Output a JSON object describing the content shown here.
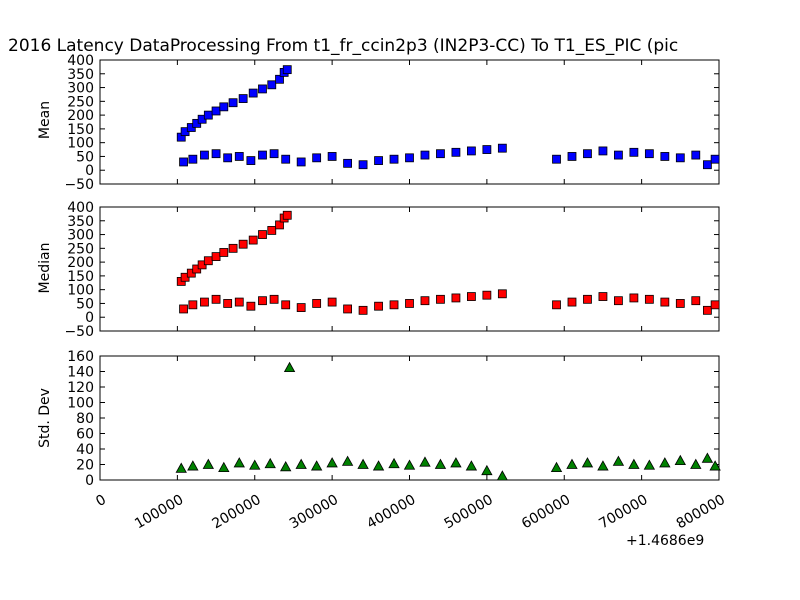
{
  "title": "2016 Latency DataProcessing From t1_fr_ccin2p3 (IN2P3-CC) To T1_ES_PIC (pic",
  "x_offset_label": "+1.4686e9",
  "chart_data": [
    {
      "type": "scatter",
      "ylabel": "Mean",
      "marker": "square",
      "color": "#0000ff",
      "xlim": [
        0,
        800000
      ],
      "ylim": [
        -50,
        400
      ],
      "yticks": [
        "−50",
        "0",
        "50",
        "100",
        "150",
        "200",
        "250",
        "300",
        "350",
        "400"
      ],
      "ytick_values": [
        -50,
        0,
        50,
        100,
        150,
        200,
        250,
        300,
        350,
        400
      ],
      "x": [
        105000,
        110000,
        118000,
        125000,
        132000,
        140000,
        150000,
        160000,
        172000,
        185000,
        198000,
        210000,
        222000,
        232000,
        238000,
        242000,
        108000,
        120000,
        135000,
        150000,
        165000,
        180000,
        195000,
        210000,
        225000,
        240000,
        260000,
        280000,
        300000,
        320000,
        340000,
        360000,
        380000,
        400000,
        420000,
        440000,
        460000,
        480000,
        500000,
        520000,
        590000,
        610000,
        630000,
        650000,
        670000,
        690000,
        710000,
        730000,
        750000,
        770000,
        785000,
        795000
      ],
      "y": [
        120,
        140,
        155,
        170,
        185,
        200,
        215,
        230,
        245,
        260,
        280,
        295,
        310,
        330,
        355,
        365,
        30,
        40,
        55,
        60,
        45,
        50,
        35,
        55,
        60,
        40,
        30,
        45,
        50,
        25,
        20,
        35,
        40,
        45,
        55,
        60,
        65,
        70,
        75,
        80,
        40,
        50,
        60,
        70,
        55,
        65,
        60,
        50,
        45,
        55,
        20,
        40
      ]
    },
    {
      "type": "scatter",
      "ylabel": "Median",
      "marker": "square",
      "color": "#ff0000",
      "xlim": [
        0,
        800000
      ],
      "ylim": [
        -50,
        400
      ],
      "yticks": [
        "−50",
        "0",
        "50",
        "100",
        "150",
        "200",
        "250",
        "300",
        "350",
        "400"
      ],
      "ytick_values": [
        -50,
        0,
        50,
        100,
        150,
        200,
        250,
        300,
        350,
        400
      ],
      "x": [
        105000,
        110000,
        118000,
        125000,
        132000,
        140000,
        150000,
        160000,
        172000,
        185000,
        198000,
        210000,
        222000,
        232000,
        238000,
        242000,
        108000,
        120000,
        135000,
        150000,
        165000,
        180000,
        195000,
        210000,
        225000,
        240000,
        260000,
        280000,
        300000,
        320000,
        340000,
        360000,
        380000,
        400000,
        420000,
        440000,
        460000,
        480000,
        500000,
        520000,
        590000,
        610000,
        630000,
        650000,
        670000,
        690000,
        710000,
        730000,
        750000,
        770000,
        785000,
        795000
      ],
      "y": [
        130,
        145,
        160,
        175,
        190,
        205,
        220,
        235,
        250,
        265,
        280,
        300,
        315,
        335,
        360,
        370,
        30,
        45,
        55,
        65,
        50,
        55,
        40,
        60,
        65,
        45,
        35,
        50,
        55,
        30,
        25,
        40,
        45,
        50,
        60,
        65,
        70,
        75,
        80,
        85,
        45,
        55,
        65,
        75,
        60,
        70,
        65,
        55,
        50,
        60,
        25,
        45
      ]
    },
    {
      "type": "scatter",
      "ylabel": "Std. Dev",
      "marker": "triangle",
      "color": "#008000",
      "xlim": [
        0,
        800000
      ],
      "ylim": [
        0,
        160
      ],
      "yticks": [
        "0",
        "20",
        "40",
        "60",
        "80",
        "100",
        "120",
        "140",
        "160"
      ],
      "ytick_values": [
        0,
        20,
        40,
        60,
        80,
        100,
        120,
        140,
        160
      ],
      "xticks": [
        "0",
        "100000",
        "200000",
        "300000",
        "400000",
        "500000",
        "600000",
        "700000",
        "800000"
      ],
      "xtick_values": [
        0,
        100000,
        200000,
        300000,
        400000,
        500000,
        600000,
        700000,
        800000
      ],
      "x": [
        105000,
        120000,
        140000,
        160000,
        180000,
        200000,
        220000,
        240000,
        245000,
        260000,
        280000,
        300000,
        320000,
        340000,
        360000,
        380000,
        400000,
        420000,
        440000,
        460000,
        480000,
        500000,
        520000,
        590000,
        610000,
        630000,
        650000,
        670000,
        690000,
        710000,
        730000,
        750000,
        770000,
        785000,
        795000
      ],
      "y": [
        15,
        18,
        20,
        16,
        22,
        19,
        21,
        17,
        145,
        20,
        18,
        22,
        24,
        20,
        18,
        21,
        19,
        23,
        20,
        22,
        18,
        12,
        5,
        16,
        20,
        22,
        18,
        24,
        20,
        19,
        22,
        25,
        20,
        28,
        18
      ]
    }
  ]
}
